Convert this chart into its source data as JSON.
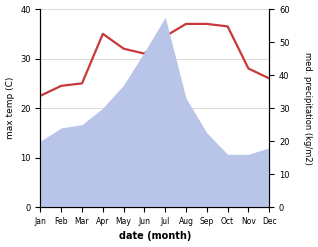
{
  "months": [
    "Jan",
    "Feb",
    "Mar",
    "Apr",
    "May",
    "Jun",
    "Jul",
    "Aug",
    "Sep",
    "Oct",
    "Nov",
    "Dec"
  ],
  "temp_C": [
    22.5,
    24.5,
    25.0,
    35.0,
    32.0,
    31.0,
    34.5,
    37.0,
    37.0,
    36.5,
    28.0,
    26.0
  ],
  "precip_kg": [
    20.0,
    24.0,
    25.0,
    30.0,
    37.0,
    47.0,
    57.5,
    33.0,
    22.5,
    16.0,
    16.0,
    18.0
  ],
  "temp_color": "#c8393b",
  "precip_fill_color": "#b8c4e8",
  "left_ylim": [
    0,
    40
  ],
  "right_ylim": [
    0,
    60
  ],
  "left_ylabel": "max temp (C)",
  "right_ylabel": "med. precipitation (kg/m2)",
  "xlabel": "date (month)",
  "temp_linewidth": 1.6,
  "left_yticks": [
    0,
    10,
    20,
    30,
    40
  ],
  "right_yticks": [
    0,
    10,
    20,
    30,
    40,
    50,
    60
  ],
  "figsize": [
    3.18,
    2.47
  ],
  "dpi": 100
}
